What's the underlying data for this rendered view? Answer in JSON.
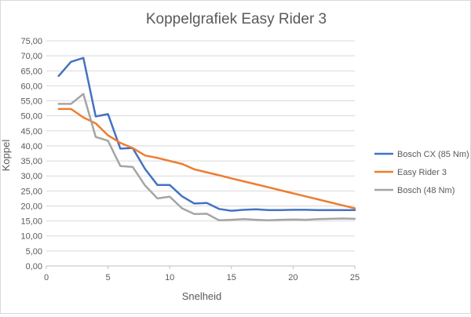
{
  "chart_data": {
    "type": "line",
    "title": "Koppelgrafiek Easy Rider 3",
    "xlabel": "Snelheid",
    "ylabel": "Koppel",
    "xlim": [
      0,
      25
    ],
    "ylim": [
      0,
      75
    ],
    "x_ticks": [
      "0",
      "5",
      "10",
      "15",
      "20",
      "25"
    ],
    "y_ticks": [
      "0,00",
      "5,00",
      "10,00",
      "15,00",
      "20,00",
      "25,00",
      "30,00",
      "35,00",
      "40,00",
      "45,00",
      "50,00",
      "55,00",
      "60,00",
      "65,00",
      "70,00",
      "75,00"
    ],
    "grid": "horizontal",
    "legend_position": "right",
    "series": [
      {
        "name": "Bosch CX (85 Nm)",
        "color": "#4472c4",
        "x": [
          1,
          2,
          3,
          4,
          5,
          6,
          7,
          8,
          9,
          10,
          11,
          12,
          13,
          14,
          15,
          16,
          17,
          18,
          19,
          20,
          21,
          22,
          23,
          24,
          25
        ],
        "values": [
          63.3,
          68.0,
          69.3,
          49.8,
          50.6,
          39.1,
          39.3,
          32.3,
          27.0,
          27.0,
          23.2,
          20.8,
          21.0,
          19.0,
          18.4,
          18.7,
          18.9,
          18.6,
          18.6,
          18.7,
          18.7,
          18.6,
          18.6,
          18.6,
          18.6
        ]
      },
      {
        "name": "Easy Rider 3",
        "color": "#ed7d31",
        "x": [
          1,
          2,
          3,
          4,
          5,
          6,
          7,
          8,
          9,
          10,
          11,
          12,
          13,
          14,
          15,
          16,
          17,
          18,
          19,
          20,
          21,
          22,
          23,
          24,
          25
        ],
        "values": [
          52.3,
          52.3,
          49.5,
          47.5,
          43.5,
          41.0,
          39.3,
          36.8,
          36.0,
          35.0,
          34.0,
          32.2,
          31.2,
          30.2,
          29.2,
          28.2,
          27.2,
          26.2,
          25.2,
          24.2,
          23.2,
          22.2,
          21.2,
          20.2,
          19.2
        ]
      },
      {
        "name": "Bosch (48 Nm)",
        "color": "#a5a5a5",
        "x": [
          1,
          2,
          3,
          4,
          5,
          6,
          7,
          8,
          9,
          10,
          11,
          12,
          13,
          14,
          15,
          16,
          17,
          18,
          19,
          20,
          21,
          22,
          23,
          24,
          25
        ],
        "values": [
          54.0,
          54.0,
          57.3,
          43.0,
          41.7,
          33.3,
          33.0,
          26.8,
          22.5,
          23.1,
          19.2,
          17.3,
          17.4,
          15.2,
          15.4,
          15.6,
          15.4,
          15.2,
          15.4,
          15.5,
          15.4,
          15.6,
          15.7,
          15.8,
          15.7
        ]
      }
    ]
  }
}
